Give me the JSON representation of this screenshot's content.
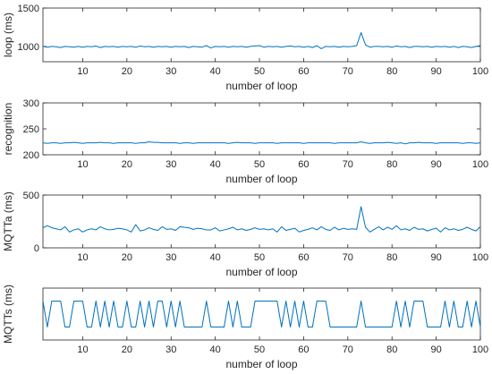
{
  "chart_data": [
    {
      "type": "line",
      "ylabel": "loop (ms)",
      "xlabel": "number of loop",
      "xlim": [
        1,
        100
      ],
      "ylim": [
        800,
        1500
      ],
      "xticks": [
        10,
        20,
        30,
        40,
        50,
        60,
        70,
        80,
        90,
        100
      ],
      "yticks": [
        1000,
        1500
      ],
      "grid": false,
      "color": "#0072BD",
      "x": [
        1,
        2,
        3,
        4,
        5,
        6,
        7,
        8,
        9,
        10,
        11,
        12,
        13,
        14,
        15,
        16,
        17,
        18,
        19,
        20,
        21,
        22,
        23,
        24,
        25,
        26,
        27,
        28,
        29,
        30,
        31,
        32,
        33,
        34,
        35,
        36,
        37,
        38,
        39,
        40,
        41,
        42,
        43,
        44,
        45,
        46,
        47,
        48,
        49,
        50,
        51,
        52,
        53,
        54,
        55,
        56,
        57,
        58,
        59,
        60,
        61,
        62,
        63,
        64,
        65,
        66,
        67,
        68,
        69,
        70,
        71,
        72,
        73,
        74,
        75,
        76,
        77,
        78,
        79,
        80,
        81,
        82,
        83,
        84,
        85,
        86,
        87,
        88,
        89,
        90,
        91,
        92,
        93,
        94,
        95,
        96,
        97,
        98,
        99,
        100
      ],
      "values": [
        1000,
        990,
        1000,
        995,
        985,
        1000,
        995,
        990,
        1000,
        990,
        1000,
        995,
        1005,
        985,
        1000,
        995,
        1000,
        990,
        1000,
        995,
        1000,
        990,
        1005,
        995,
        1000,
        990,
        1000,
        995,
        1000,
        990,
        1000,
        995,
        1000,
        985,
        1000,
        995,
        990,
        1010,
        980,
        1000,
        995,
        1000,
        990,
        1000,
        995,
        1000,
        990,
        1000,
        1005,
        1010,
        990,
        1000,
        995,
        1000,
        990,
        1000,
        1005,
        995,
        1000,
        990,
        1000,
        985,
        1010,
        970,
        1000,
        995,
        1000,
        990,
        1000,
        995,
        1000,
        1010,
        1180,
        1020,
        990,
        1000,
        1000,
        995,
        1000,
        990,
        1005,
        995,
        1000,
        985,
        1000,
        1000,
        995,
        1000,
        990,
        1000,
        995,
        1000,
        990,
        1000,
        985,
        1000,
        995,
        985,
        1000,
        1010
      ]
    },
    {
      "type": "line",
      "ylabel": "recognition",
      "xlabel": "number of loop",
      "xlim": [
        1,
        100
      ],
      "ylim": [
        200,
        300
      ],
      "xticks": [
        10,
        20,
        30,
        40,
        50,
        60,
        70,
        80,
        90,
        100
      ],
      "yticks": [
        200,
        250,
        300
      ],
      "grid": false,
      "color": "#0072BD",
      "x": [
        1,
        2,
        3,
        4,
        5,
        6,
        7,
        8,
        9,
        10,
        11,
        12,
        13,
        14,
        15,
        16,
        17,
        18,
        19,
        20,
        21,
        22,
        23,
        24,
        25,
        26,
        27,
        28,
        29,
        30,
        31,
        32,
        33,
        34,
        35,
        36,
        37,
        38,
        39,
        40,
        41,
        42,
        43,
        44,
        45,
        46,
        47,
        48,
        49,
        50,
        51,
        52,
        53,
        54,
        55,
        56,
        57,
        58,
        59,
        60,
        61,
        62,
        63,
        64,
        65,
        66,
        67,
        68,
        69,
        70,
        71,
        72,
        73,
        74,
        75,
        76,
        77,
        78,
        79,
        80,
        81,
        82,
        83,
        84,
        85,
        86,
        87,
        88,
        89,
        90,
        91,
        92,
        93,
        94,
        95,
        96,
        97,
        98,
        99,
        100
      ],
      "values": [
        223,
        222,
        223,
        223,
        222,
        223,
        223,
        224,
        223,
        222,
        223,
        223,
        223,
        224,
        223,
        223,
        222,
        223,
        223,
        223,
        223,
        222,
        223,
        223,
        225,
        224,
        224,
        223,
        223,
        223,
        223,
        222,
        223,
        223,
        222,
        223,
        223,
        223,
        223,
        223,
        223,
        223,
        222,
        223,
        224,
        223,
        223,
        223,
        222,
        223,
        223,
        223,
        223,
        222,
        223,
        223,
        223,
        223,
        223,
        222,
        223,
        223,
        223,
        223,
        223,
        223,
        222,
        223,
        223,
        223,
        223,
        223,
        225,
        223,
        222,
        223,
        223,
        223,
        224,
        223,
        222,
        223,
        221,
        223,
        223,
        224,
        223,
        223,
        223,
        222,
        223,
        223,
        223,
        223,
        223,
        222,
        223,
        223,
        222,
        223
      ]
    },
    {
      "type": "line",
      "ylabel": "MQTTa (ms)",
      "xlabel": "number of loop",
      "xlim": [
        1,
        100
      ],
      "ylim": [
        0,
        500
      ],
      "xticks": [
        10,
        20,
        30,
        40,
        50,
        60,
        70,
        80,
        90,
        100
      ],
      "yticks": [
        0,
        500
      ],
      "grid": false,
      "color": "#0072BD",
      "x": [
        1,
        2,
        3,
        4,
        5,
        6,
        7,
        8,
        9,
        10,
        11,
        12,
        13,
        14,
        15,
        16,
        17,
        18,
        19,
        20,
        21,
        22,
        23,
        24,
        25,
        26,
        27,
        28,
        29,
        30,
        31,
        32,
        33,
        34,
        35,
        36,
        37,
        38,
        39,
        40,
        41,
        42,
        43,
        44,
        45,
        46,
        47,
        48,
        49,
        50,
        51,
        52,
        53,
        54,
        55,
        56,
        57,
        58,
        59,
        60,
        61,
        62,
        63,
        64,
        65,
        66,
        67,
        68,
        69,
        70,
        71,
        72,
        73,
        74,
        75,
        76,
        77,
        78,
        79,
        80,
        81,
        82,
        83,
        84,
        85,
        86,
        87,
        88,
        89,
        90,
        91,
        92,
        93,
        94,
        95,
        96,
        97,
        98,
        99,
        100
      ],
      "values": [
        190,
        210,
        190,
        180,
        170,
        200,
        150,
        170,
        180,
        150,
        170,
        180,
        170,
        200,
        180,
        170,
        175,
        185,
        180,
        170,
        150,
        220,
        160,
        170,
        190,
        175,
        165,
        200,
        175,
        180,
        165,
        200,
        195,
        190,
        175,
        185,
        180,
        170,
        170,
        190,
        160,
        170,
        180,
        195,
        170,
        180,
        165,
        175,
        190,
        175,
        180,
        170,
        180,
        150,
        200,
        165,
        175,
        185,
        150,
        165,
        175,
        190,
        170,
        200,
        175,
        165,
        195,
        170,
        185,
        175,
        180,
        175,
        390,
        195,
        150,
        175,
        200,
        170,
        195,
        175,
        210,
        170,
        180,
        165,
        195,
        175,
        180,
        160,
        175,
        185,
        150,
        190,
        170,
        180,
        165,
        175,
        195,
        175,
        160,
        200
      ]
    },
    {
      "type": "line",
      "ylabel": "MQTTs (ms)",
      "xlabel": "number of loop",
      "xlim": [
        1,
        100
      ],
      "ylim": [
        1.5,
        3.5
      ],
      "xticks": [
        10,
        20,
        30,
        40,
        50,
        60,
        70,
        80,
        90,
        100
      ],
      "yticks": [],
      "grid": false,
      "color": "#0072BD",
      "x": [
        1,
        2,
        3,
        4,
        5,
        6,
        7,
        8,
        9,
        10,
        11,
        12,
        13,
        14,
        15,
        16,
        17,
        18,
        19,
        20,
        21,
        22,
        23,
        24,
        25,
        26,
        27,
        28,
        29,
        30,
        31,
        32,
        33,
        34,
        35,
        36,
        37,
        38,
        39,
        40,
        41,
        42,
        43,
        44,
        45,
        46,
        47,
        48,
        49,
        50,
        51,
        52,
        53,
        54,
        55,
        56,
        57,
        58,
        59,
        60,
        61,
        62,
        63,
        64,
        65,
        66,
        67,
        68,
        69,
        70,
        71,
        72,
        73,
        74,
        75,
        76,
        77,
        78,
        79,
        80,
        81,
        82,
        83,
        84,
        85,
        86,
        87,
        88,
        89,
        90,
        91,
        92,
        93,
        94,
        95,
        96,
        97,
        98,
        99,
        100
      ],
      "values": [
        3,
        2,
        3,
        3,
        3,
        2,
        2,
        3,
        3,
        3,
        2,
        2,
        3,
        2,
        3,
        2,
        3,
        2,
        2,
        3,
        2,
        2,
        3,
        2,
        3,
        2,
        3,
        3,
        2,
        3,
        2,
        3,
        2,
        2,
        2,
        2,
        2,
        3,
        2,
        2,
        2,
        2,
        3,
        2,
        3,
        2,
        2,
        2,
        3,
        3,
        3,
        3,
        3,
        3,
        2,
        3,
        2,
        3,
        2,
        3,
        2,
        2,
        3,
        3,
        3,
        2,
        2,
        2,
        2,
        2,
        2,
        2,
        3,
        2,
        2,
        2,
        2,
        2,
        2,
        2,
        3,
        2,
        3,
        2,
        3,
        3,
        3,
        2,
        2,
        2,
        2,
        3,
        2,
        3,
        2,
        2,
        3,
        2,
        3,
        2
      ]
    }
  ]
}
